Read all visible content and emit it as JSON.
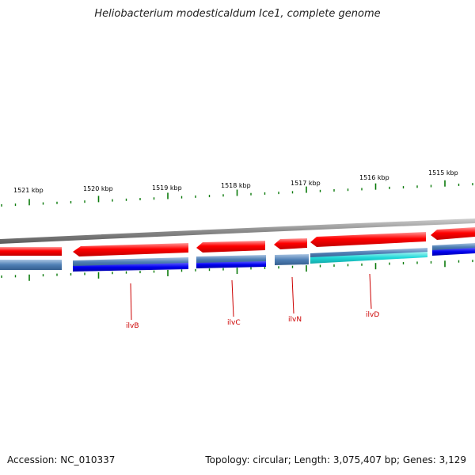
{
  "title": "Heliobacterium modesticaldum Ice1, complete genome",
  "accession_text": "Accession: NC_010337",
  "summary_text": "Topology: circular; Length: 3,075,407 bp; Genes: 3,129",
  "scale_labels": [
    "1521 kbp",
    "1520 kbp",
    "1519 kbp",
    "1518 kbp",
    "1517 kbp",
    "1516 kbp",
    "1515 kbp"
  ],
  "gene_labels": [
    "ilvB",
    "ilvC",
    "ilvN",
    "ilvD"
  ],
  "colors": {
    "forward_strand": "#ff0000",
    "reverse_strand": "#4f7fb5",
    "highlight_gene": "#0000ee",
    "ilvD_highlight": "#20d8d8",
    "backbone": "#8a8a8a",
    "ticks": "#0a7a0a",
    "gene_label": "#cc0000"
  }
}
